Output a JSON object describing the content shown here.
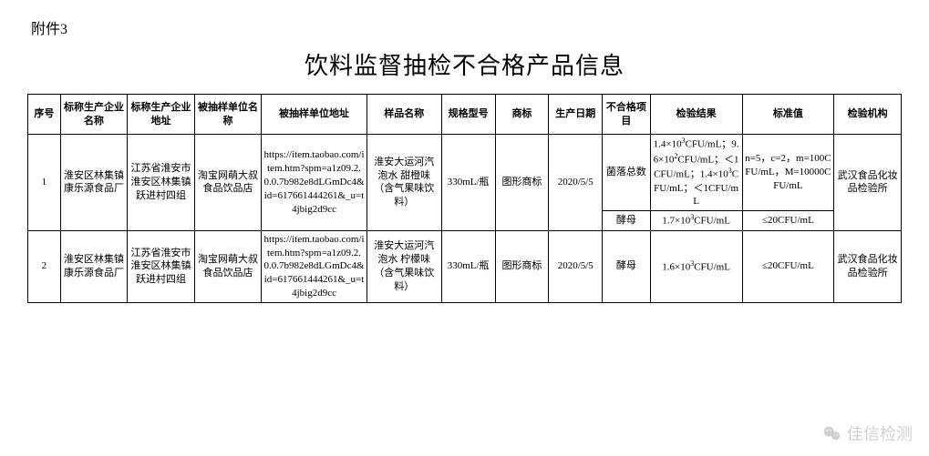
{
  "attachment_label": "附件3",
  "title": "饮料监督抽检不合格产品信息",
  "columns": [
    "序号",
    "标称生产企业名称",
    "标称生产企业地址",
    "被抽样单位名称",
    "被抽样单位地址",
    "样品名称",
    "规格型号",
    "商标",
    "生产日期",
    "不合格项目",
    "检验结果",
    "标准值",
    "检验机构"
  ],
  "col_widths": [
    "34px",
    "70px",
    "70px",
    "70px",
    "110px",
    "78px",
    "56px",
    "56px",
    "56px",
    "50px",
    "96px",
    "96px",
    "70px"
  ],
  "rows": [
    {
      "no": "1",
      "producer": "淮安区林集镇康乐源食品厂",
      "producer_addr": "江苏省淮安市淮安区林集镇跃进村四组",
      "sampled_unit": "淘宝网萌大叔食品饮品店",
      "sampled_addr": "https://item.taobao.com/item.htm?spm=a1z09.2.0.0.7b982e8dLGmDc4&id=617661444261&_u=t4jbig2d9cc",
      "sample_name": "淮安大运河汽泡水 甜橙味（含气果味饮料）",
      "spec": "330mL/瓶",
      "trademark": "图形商标",
      "prod_date": "2020/5/5",
      "institution": "武汉食品化妆品检验所",
      "fails": [
        {
          "item": "菌落总数",
          "result_html": "1.4×10<sup>3</sup>CFU/mL；9.6×10<sup>2</sup>CFU/mL；＜1CFU/mL；1.4×10<sup>3</sup>CFU/mL；＜1CFU/mL",
          "standard_html": "n=5，c=2，m=100CFU/mL，M=10000CFU/mL"
        },
        {
          "item": "酵母",
          "result_html": "1.7×10<sup>3</sup>CFU/mL",
          "standard_html": "≤20CFU/mL"
        }
      ]
    },
    {
      "no": "2",
      "producer": "淮安区林集镇康乐源食品厂",
      "producer_addr": "江苏省淮安市淮安区林集镇跃进村四组",
      "sampled_unit": "淘宝网萌大叔食品饮品店",
      "sampled_addr": "https://item.taobao.com/item.htm?spm=a1z09.2.0.0.7b982e8dLGmDc4&id=617661444261&_u=t4jbig2d9cc",
      "sample_name": "淮安大运河汽泡水 柠檬味（含气果味饮料）",
      "spec": "330mL/瓶",
      "trademark": "图形商标",
      "prod_date": "2020/5/5",
      "institution": "武汉食品化妆品检验所",
      "fails": [
        {
          "item": "酵母",
          "result_html": "1.6×10<sup>3</sup>CFU/mL",
          "standard_html": "≤20CFU/mL"
        }
      ]
    }
  ],
  "watermark": "佳信检测"
}
